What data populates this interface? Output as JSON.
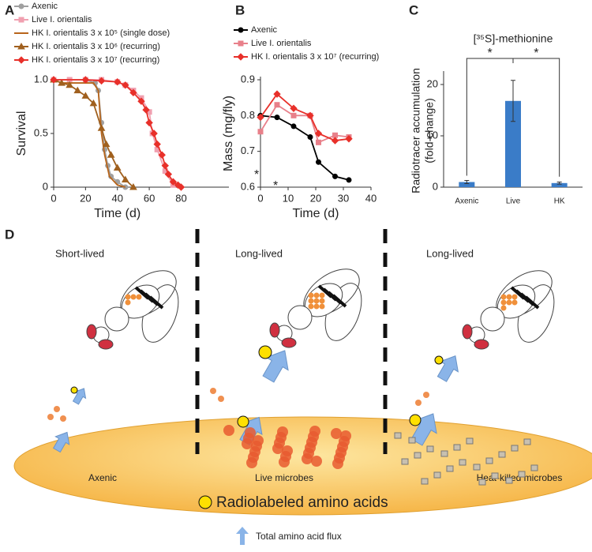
{
  "panels": [
    "A",
    "B",
    "C",
    "D"
  ],
  "chart_data": [
    {
      "type": "line",
      "xlabel": "Time (d)",
      "ylabel": "Survival",
      "xlim": [
        0,
        110
      ],
      "xticks": [
        0,
        20,
        40,
        60,
        80
      ],
      "ylim": [
        0,
        1
      ],
      "yticks": [
        0,
        0.5,
        {
          "value": 1,
          "label": "1.0"
        }
      ],
      "series": [
        {
          "name": "Axenic",
          "color": "#a0a0a0",
          "marker": "circle",
          "x": [
            0,
            20,
            26,
            28,
            30,
            32,
            34,
            36,
            40,
            45
          ],
          "values": [
            1,
            1,
            0.97,
            0.9,
            0.6,
            0.35,
            0.2,
            0.1,
            0.05,
            0
          ]
        },
        {
          "name": "Live I. orientalis",
          "color": "#f0a0b0",
          "marker": "square",
          "x": [
            0,
            10,
            20,
            30,
            40,
            45,
            50,
            55,
            60,
            62,
            65,
            70,
            75
          ],
          "values": [
            1,
            1,
            1,
            1,
            0.98,
            0.95,
            0.9,
            0.83,
            0.7,
            0.5,
            0.35,
            0.15,
            0.02
          ]
        },
        {
          "name": "HK I. orientalis 3 x 10⁵ (single dose)",
          "color": "#b8651b",
          "marker": "none",
          "x": [
            0,
            5,
            25,
            28,
            30,
            32,
            35,
            40,
            45
          ],
          "values": [
            1,
            0.97,
            0.97,
            0.9,
            0.5,
            0.3,
            0.1,
            0.02,
            0
          ]
        },
        {
          "name": "HK I. orientalis 3 x 10⁶ (recurring)",
          "color": "#a0601e",
          "marker": "triangle",
          "x": [
            0,
            5,
            10,
            15,
            20,
            25,
            30,
            33,
            36,
            40,
            45,
            50
          ],
          "values": [
            1,
            0.97,
            0.95,
            0.9,
            0.85,
            0.78,
            0.55,
            0.4,
            0.3,
            0.18,
            0.07,
            0
          ]
        },
        {
          "name": "HK I. orientalis 3 x 10⁷ (recurring)",
          "color": "#e8302a",
          "marker": "diamond",
          "x": [
            0,
            20,
            30,
            40,
            45,
            50,
            55,
            58,
            60,
            63,
            65,
            68,
            70,
            72,
            75,
            78,
            80
          ],
          "values": [
            1,
            1,
            0.99,
            0.98,
            0.95,
            0.88,
            0.8,
            0.72,
            0.6,
            0.5,
            0.4,
            0.3,
            0.2,
            0.12,
            0.05,
            0.02,
            0
          ]
        }
      ]
    },
    {
      "type": "line",
      "xlabel": "Time (d)",
      "ylabel": "Mass (mg/fly)",
      "xlim": [
        0,
        40
      ],
      "xticks": [
        0,
        10,
        20,
        30,
        40
      ],
      "ylim": [
        0.6,
        0.9
      ],
      "yticks": [
        0.6,
        0.7,
        0.8,
        0.9
      ],
      "annotations": [
        "*",
        "*"
      ],
      "series": [
        {
          "name": "Axenic",
          "color": "#000000",
          "marker": "circle",
          "x": [
            0,
            6,
            12,
            18,
            21,
            27,
            32
          ],
          "values": [
            0.8,
            0.795,
            0.77,
            0.74,
            0.67,
            0.63,
            0.62
          ]
        },
        {
          "name": "Live I. orientalis",
          "color": "#e8808a",
          "marker": "square",
          "x": [
            0,
            6,
            12,
            18,
            21,
            27,
            32
          ],
          "values": [
            0.755,
            0.83,
            0.8,
            0.8,
            0.725,
            0.745,
            0.74
          ]
        },
        {
          "name": "HK I. orientalis 3 x 10⁷ (recurring)",
          "color": "#e8302a",
          "marker": "diamond",
          "x": [
            0,
            6,
            12,
            18,
            21,
            27,
            32
          ],
          "values": [
            0.795,
            0.86,
            0.82,
            0.8,
            0.75,
            0.73,
            0.735
          ]
        }
      ]
    },
    {
      "type": "bar",
      "title": "[³⁵S]-methionine",
      "ylabel": [
        "Radiotracer accumulation",
        "(fold-change)"
      ],
      "categories": [
        "Axenic",
        "Live",
        "HK"
      ],
      "values": [
        1,
        16.8,
        0.8
      ],
      "errors": [
        0.3,
        4,
        0.2
      ],
      "color": "#3a7cc8",
      "ylim": [
        0,
        22
      ],
      "yticks": [
        0,
        10,
        20
      ],
      "annotations": [
        "*",
        "*"
      ]
    }
  ],
  "diagram": {
    "labels": [
      "Short-lived",
      "Long-lived",
      "Long-lived"
    ],
    "zones": [
      "Axenic",
      "Live microbes",
      "Heat-killed microbes"
    ],
    "legend": [
      "Radiolabeled amino acids",
      "Total amino acid flux"
    ]
  }
}
